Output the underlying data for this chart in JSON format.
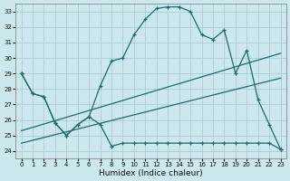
{
  "title": "",
  "xlabel": "Humidex (Indice chaleur)",
  "ylabel": "",
  "background_color": "#cce8ec",
  "grid_color": "#aacdd4",
  "line_color": "#1e6b6b",
  "xlim": [
    -0.5,
    23.5
  ],
  "ylim": [
    23.5,
    33.5
  ],
  "yticks": [
    24,
    25,
    26,
    27,
    28,
    29,
    30,
    31,
    32,
    33
  ],
  "xticks": [
    0,
    1,
    2,
    3,
    4,
    5,
    6,
    7,
    8,
    9,
    10,
    11,
    12,
    13,
    14,
    15,
    16,
    17,
    18,
    19,
    20,
    21,
    22,
    23
  ],
  "series_upper_x": [
    0,
    1,
    2,
    3,
    4,
    5,
    6,
    7,
    8,
    9,
    10,
    11,
    12,
    13,
    14,
    15,
    16,
    17,
    18,
    19,
    20,
    21,
    22,
    23
  ],
  "series_upper_y": [
    29.0,
    27.7,
    27.5,
    25.8,
    25.0,
    25.7,
    26.2,
    28.2,
    29.8,
    30.0,
    31.5,
    32.5,
    33.2,
    33.3,
    33.3,
    33.0,
    31.5,
    31.2,
    31.8,
    29.0,
    30.5,
    27.3,
    25.7,
    24.1
  ],
  "series_lower_x": [
    0,
    1,
    2,
    3,
    4,
    5,
    6,
    7,
    8,
    9,
    10,
    11,
    12,
    13,
    14,
    15,
    16,
    17,
    18,
    19,
    20,
    21,
    22,
    23
  ],
  "series_lower_y": [
    29.0,
    27.7,
    27.5,
    25.8,
    25.0,
    25.7,
    26.2,
    25.7,
    24.3,
    24.5,
    24.5,
    24.5,
    24.5,
    24.5,
    24.5,
    24.5,
    24.5,
    24.5,
    24.5,
    24.5,
    24.5,
    24.5,
    24.5,
    24.1
  ],
  "trend1_x": [
    0,
    23
  ],
  "trend1_y": [
    25.3,
    30.3
  ],
  "trend2_x": [
    0,
    23
  ],
  "trend2_y": [
    24.5,
    28.7
  ]
}
